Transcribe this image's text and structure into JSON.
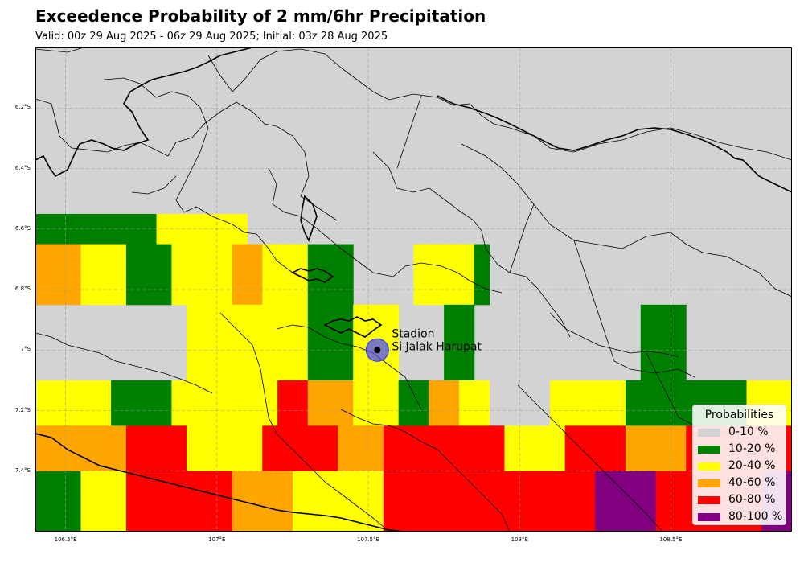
{
  "title": "Exceedence Probability of 2 mm/6hr Precipitation",
  "subtitle": "Valid: 00z 29 Aug 2025 - 06z 29 Aug 2025; Initial: 03z 28 Aug 2025",
  "map": {
    "lon_range": [
      106.4,
      108.9
    ],
    "lat_range": [
      -7.6,
      -6.0
    ],
    "background_color": "#d3d3d3",
    "grid": true,
    "x_ticks": [
      {
        "lon": 106.5,
        "label": "106.5°E"
      },
      {
        "lon": 107.0,
        "label": "107°E"
      },
      {
        "lon": 107.5,
        "label": "107.5°E"
      },
      {
        "lon": 108.0,
        "label": "108°E"
      },
      {
        "lon": 108.5,
        "label": "108.5°E"
      }
    ],
    "y_ticks": [
      {
        "lat": -6.2,
        "label": "6.2°S"
      },
      {
        "lat": -6.4,
        "label": "6.4°S"
      },
      {
        "lat": -6.6,
        "label": "6.6°S"
      },
      {
        "lat": -6.8,
        "label": "6.8°S"
      },
      {
        "lat": -7.0,
        "label": "7°S"
      },
      {
        "lat": -7.2,
        "label": "7.2°S"
      },
      {
        "lat": -7.4,
        "label": "7.4°S"
      }
    ]
  },
  "station": {
    "name_line1": "Stadion",
    "name_line2": "Si Jalak Harupat",
    "lon": 107.53,
    "lat": -7.0
  },
  "legend": {
    "title": "Probabilities",
    "placement": "lower-right",
    "items": [
      {
        "label": "0-10 %",
        "color": "#d3d3d3"
      },
      {
        "label": "10-20 %",
        "color": "#008000"
      },
      {
        "label": "20-40 %",
        "color": "#ffff00"
      },
      {
        "label": "40-60 %",
        "color": "#ffa500"
      },
      {
        "label": "60-80 %",
        "color": "#ff0000"
      },
      {
        "label": "80-100 %",
        "color": "#800080"
      }
    ]
  }
}
